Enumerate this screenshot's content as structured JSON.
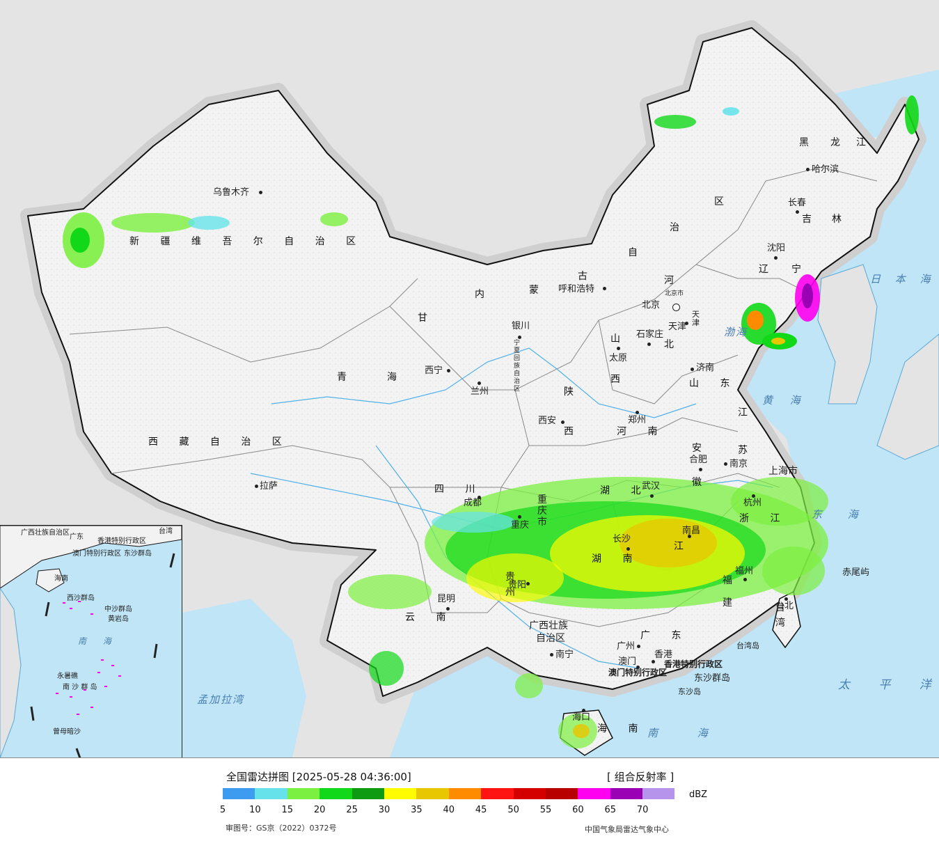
{
  "legend": {
    "title": "全国雷达拼图 [2025-05-28 04:36:00]",
    "product": "[ 组合反射率 ]",
    "unit": "dBZ",
    "ticks": [
      "5",
      "10",
      "15",
      "20",
      "25",
      "30",
      "35",
      "40",
      "45",
      "50",
      "55",
      "60",
      "65",
      "70"
    ],
    "colors": [
      "#3d9cf0",
      "#66e3ea",
      "#7cf040",
      "#12d81a",
      "#0e9b12",
      "#fffb00",
      "#e8c600",
      "#ff8c00",
      "#ff1414",
      "#d40000",
      "#b80000",
      "#ff00f0",
      "#9a00b4",
      "#b694ec"
    ],
    "approval": "审图号：GS京（2022）0372号",
    "agency": "中国气象局雷达气象中心"
  },
  "map": {
    "colors": {
      "land": "#f2f2f2",
      "sea": "#bfe5f7",
      "neighbor": "#e4e4e4",
      "border": "#111111",
      "province": "#888888",
      "river": "#4fb1e8"
    },
    "regions": [
      {
        "id": "xinjiang",
        "text": "新 疆 维 吾 尔 自 治 区"
      },
      {
        "id": "xizang",
        "text": "西 藏 自 治 区"
      },
      {
        "id": "qinghai1",
        "text": "青"
      },
      {
        "id": "qinghai2",
        "text": "海"
      },
      {
        "id": "gansu",
        "text": "甘"
      },
      {
        "id": "heilongjiang1",
        "text": "黑"
      },
      {
        "id": "heilongjiang2",
        "text": "龙"
      },
      {
        "id": "heilongjiang3",
        "text": "江"
      },
      {
        "id": "jilin1",
        "text": "吉"
      },
      {
        "id": "jilin2",
        "text": "林"
      },
      {
        "id": "liaoning1",
        "text": "辽"
      },
      {
        "id": "liaoning2",
        "text": "宁"
      },
      {
        "id": "nm1",
        "text": "内"
      },
      {
        "id": "nm2",
        "text": "蒙"
      },
      {
        "id": "nm3",
        "text": "古"
      },
      {
        "id": "nm4",
        "text": "自"
      },
      {
        "id": "nm5",
        "text": "治"
      },
      {
        "id": "nm6",
        "text": "区"
      },
      {
        "id": "hebei1",
        "text": "河"
      },
      {
        "id": "hebei2",
        "text": "北"
      },
      {
        "id": "shanxi1",
        "text": "山"
      },
      {
        "id": "shanxi2",
        "text": "西"
      },
      {
        "id": "shaanxi1",
        "text": "陕"
      },
      {
        "id": "shaanxi2",
        "text": "西"
      },
      {
        "id": "shandong",
        "text": "山 东"
      },
      {
        "id": "henan",
        "text": "河 南"
      },
      {
        "id": "jiangsu1",
        "text": "江"
      },
      {
        "id": "jiangsu2",
        "text": "苏"
      },
      {
        "id": "anhui1",
        "text": "安"
      },
      {
        "id": "anhui2",
        "text": "徽"
      },
      {
        "id": "sichuan",
        "text": "四 川"
      },
      {
        "id": "chongqing",
        "text": "重庆市"
      },
      {
        "id": "hubei",
        "text": "湖 北"
      },
      {
        "id": "hunan",
        "text": "湖 南"
      },
      {
        "id": "jiangxi",
        "text": "江"
      },
      {
        "id": "zhejiang",
        "text": "浙 江"
      },
      {
        "id": "fujian",
        "text": "福 建"
      },
      {
        "id": "guizhou",
        "text": "贵 州"
      },
      {
        "id": "yunnan",
        "text": "云 南"
      },
      {
        "id": "guangxi1",
        "text": "广西壮族"
      },
      {
        "id": "guangxi2",
        "text": "自治区"
      },
      {
        "id": "guangdong",
        "text": "广 东"
      },
      {
        "id": "hainan",
        "text": "海 南"
      },
      {
        "id": "ningxia",
        "text": "宁夏回族自治区"
      },
      {
        "id": "tianjin",
        "text": "天津"
      },
      {
        "id": "beijingcity",
        "text": "北京市"
      },
      {
        "id": "shanghai",
        "text": "上海市"
      },
      {
        "id": "taiwan",
        "text": "台 湾"
      },
      {
        "id": "hkregion",
        "text": "香港特别行政区"
      },
      {
        "id": "macauregion",
        "text": "澳门特别行政区"
      }
    ],
    "cities": [
      {
        "id": "urumqi",
        "text": "乌鲁木齐"
      },
      {
        "id": "lhasa",
        "text": "拉萨"
      },
      {
        "id": "xining",
        "text": "西宁"
      },
      {
        "id": "lanzhou",
        "text": "兰州"
      },
      {
        "id": "yinchuan",
        "text": "银川"
      },
      {
        "id": "hohhot",
        "text": "呼和浩特"
      },
      {
        "id": "harbin",
        "text": "哈尔滨"
      },
      {
        "id": "changchun",
        "text": "长春"
      },
      {
        "id": "shenyang",
        "text": "沈阳"
      },
      {
        "id": "beijing",
        "text": "北京"
      },
      {
        "id": "tianjincity",
        "text": "天津"
      },
      {
        "id": "shijiazhuang",
        "text": "石家庄"
      },
      {
        "id": "taiyuan",
        "text": "太原"
      },
      {
        "id": "jinan",
        "text": "济南"
      },
      {
        "id": "zhengzhou",
        "text": "郑州"
      },
      {
        "id": "xian",
        "text": "西安"
      },
      {
        "id": "hefei",
        "text": "合肥"
      },
      {
        "id": "nanjing",
        "text": "南京"
      },
      {
        "id": "hangzhou",
        "text": "杭州"
      },
      {
        "id": "wuhan",
        "text": "武汉"
      },
      {
        "id": "chengdu",
        "text": "成都"
      },
      {
        "id": "chongqingcity",
        "text": "重庆"
      },
      {
        "id": "guiyang",
        "text": "贵阳"
      },
      {
        "id": "kunming",
        "text": "昆明"
      },
      {
        "id": "changsha",
        "text": "长沙"
      },
      {
        "id": "nanchang",
        "text": "南昌"
      },
      {
        "id": "fuzhou",
        "text": "福州"
      },
      {
        "id": "taipei",
        "text": "台北"
      },
      {
        "id": "nanning",
        "text": "南宁"
      },
      {
        "id": "guangzhou",
        "text": "广州"
      },
      {
        "id": "hongkong",
        "text": "香港"
      },
      {
        "id": "macau",
        "text": "澳门"
      },
      {
        "id": "haikou",
        "text": "海口"
      }
    ],
    "seas": [
      {
        "id": "bohai",
        "text": "渤海"
      },
      {
        "id": "yellowsea",
        "text": "黄 海"
      },
      {
        "id": "eastsea",
        "text": "东 海"
      },
      {
        "id": "southsea",
        "text": "南 海"
      },
      {
        "id": "japansea",
        "text": "日 本 海"
      },
      {
        "id": "pacific",
        "text": "太 平 洋"
      },
      {
        "id": "bengal",
        "text": "孟加拉湾"
      }
    ],
    "islands": [
      {
        "id": "chiwei",
        "text": "赤尾屿"
      },
      {
        "id": "taiwandao",
        "text": "台湾岛"
      },
      {
        "id": "dongsha",
        "text": "东沙群岛"
      },
      {
        "id": "dongshadao",
        "text": "东沙岛"
      }
    ],
    "inset": {
      "labels": [
        {
          "id": "i_guangdong",
          "text": "广东"
        },
        {
          "id": "i_guangxi",
          "text": "广西壮族自治区"
        },
        {
          "id": "i_taiwan",
          "text": "台湾"
        },
        {
          "id": "i_hk",
          "text": "香港特别行政区"
        },
        {
          "id": "i_macau",
          "text": "澳门特别行政区"
        },
        {
          "id": "i_dongsha",
          "text": "东沙群岛"
        },
        {
          "id": "i_hainan",
          "text": "海南"
        },
        {
          "id": "i_xisha",
          "text": "西沙群岛"
        },
        {
          "id": "i_zhongsha",
          "text": "中沙群岛"
        },
        {
          "id": "i_huangyan",
          "text": "黄岩岛"
        },
        {
          "id": "i_southsea",
          "text": "南 海"
        },
        {
          "id": "i_nansha",
          "text": "南 沙 群 岛"
        },
        {
          "id": "i_yongshu",
          "text": "永暑礁"
        },
        {
          "id": "i_zengmu",
          "text": "曾母暗沙"
        }
      ]
    }
  }
}
